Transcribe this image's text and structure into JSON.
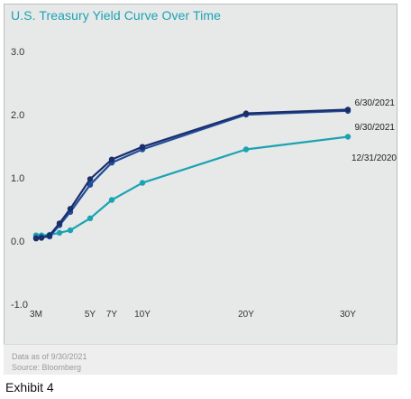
{
  "chart_data": {
    "type": "line",
    "title": "U.S. Treasury Yield Curve Over Time",
    "xlabel": "",
    "ylabel": "",
    "ylim": [
      -1.0,
      3.0
    ],
    "yticks": [
      "3.0",
      "2.0",
      "1.0",
      "0.0",
      "-1.0"
    ],
    "ytick_values": [
      3.0,
      2.0,
      1.0,
      0.0,
      -1.0
    ],
    "x_tick_labels": [
      "3M",
      "5Y",
      "7Y",
      "10Y",
      "20Y",
      "30Y"
    ],
    "x_tick_maturities": [
      0.25,
      5,
      7,
      10,
      20,
      30
    ],
    "x_maturities": [
      0.25,
      0.5,
      1,
      2,
      3,
      5,
      7,
      10,
      20,
      30
    ],
    "grid": false,
    "series": [
      {
        "name": "6/30/2021",
        "color": "#1f4e9c",
        "values": [
          0.05,
          0.06,
          0.07,
          0.25,
          0.46,
          0.89,
          1.24,
          1.45,
          2.0,
          2.06
        ]
      },
      {
        "name": "9/30/2021",
        "color": "#1c2d6b",
        "values": [
          0.04,
          0.05,
          0.09,
          0.28,
          0.51,
          0.98,
          1.29,
          1.49,
          2.02,
          2.08
        ]
      },
      {
        "name": "12/31/2020",
        "color": "#1ba3b3",
        "values": [
          0.09,
          0.09,
          0.1,
          0.13,
          0.17,
          0.36,
          0.65,
          0.92,
          1.45,
          1.65
        ]
      }
    ]
  },
  "footer": {
    "data_note": "Data as of 9/30/2021",
    "source": "Source: Bloomberg"
  },
  "caption": "Exhibit 4"
}
